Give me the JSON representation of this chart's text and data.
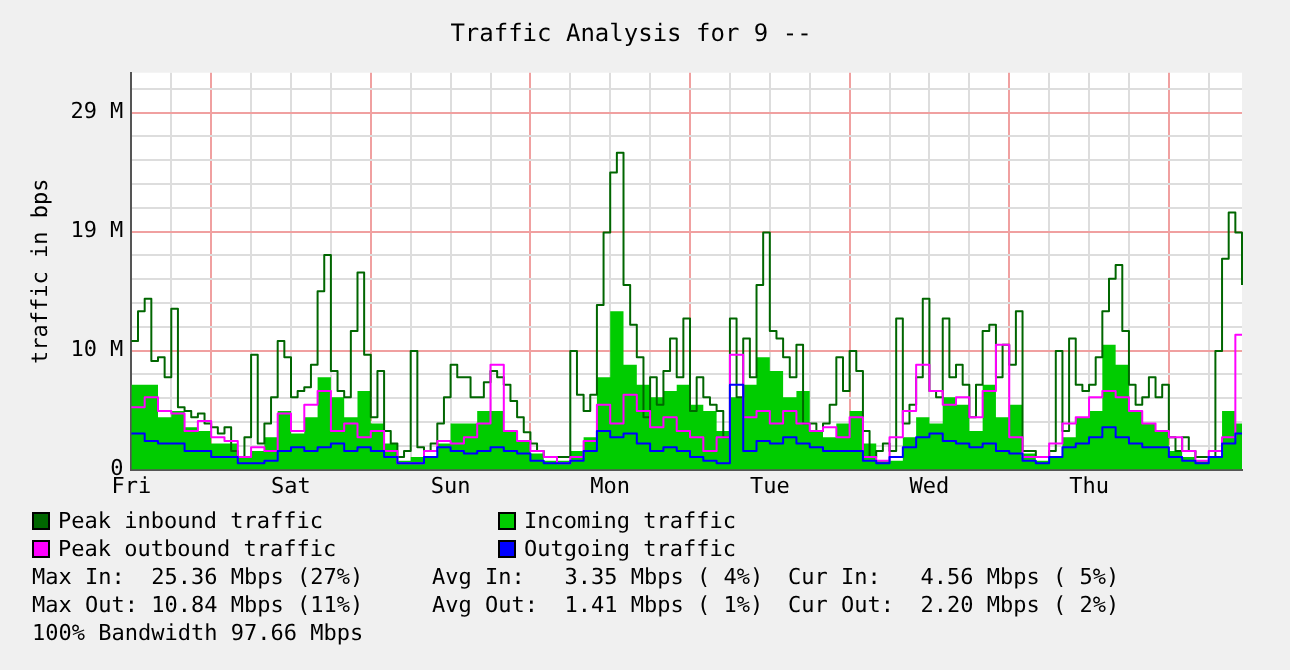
{
  "chart_data": {
    "type": "step",
    "title": "Traffic Analysis for 9 --",
    "ylabel": "traffic in bps",
    "categories": [
      "Fri",
      null,
      null,
      null,
      null,
      null,
      null,
      null,
      null,
      null,
      null,
      null,
      null,
      null,
      null,
      null,
      null,
      null,
      null,
      null,
      null,
      null,
      null,
      null,
      "Sat",
      null,
      null,
      null,
      null,
      null,
      null,
      null,
      null,
      null,
      null,
      null,
      null,
      null,
      null,
      null,
      null,
      null,
      null,
      null,
      null,
      null,
      null,
      null,
      "Sun",
      null,
      null,
      null,
      null,
      null,
      null,
      null,
      null,
      null,
      null,
      null,
      null,
      null,
      null,
      null,
      null,
      null,
      null,
      null,
      null,
      null,
      null,
      null,
      "Mon",
      null,
      null,
      null,
      null,
      null,
      null,
      null,
      null,
      null,
      null,
      null,
      null,
      null,
      null,
      null,
      null,
      null,
      null,
      null,
      null,
      null,
      null,
      null,
      "Tue",
      null,
      null,
      null,
      null,
      null,
      null,
      null,
      null,
      null,
      null,
      null,
      null,
      null,
      null,
      null,
      null,
      null,
      null,
      null,
      null,
      null,
      null,
      null,
      "Wed",
      null,
      null,
      null,
      null,
      null,
      null,
      null,
      null,
      null,
      null,
      null,
      null,
      null,
      null,
      null,
      null,
      null,
      null,
      null,
      null,
      null,
      null,
      null,
      "Thu",
      null,
      null,
      null,
      null,
      null,
      null,
      null,
      null,
      null,
      null,
      null,
      null,
      null,
      null,
      null,
      null,
      null,
      null,
      null,
      null,
      null,
      null,
      null
    ],
    "ylim": [
      0,
      31.8
    ],
    "yticks": [
      0,
      {
        "value": 1.91,
        "label": null
      },
      {
        "value": 3.81,
        "label": null
      },
      {
        "value": 5.72,
        "label": null
      },
      {
        "value": 7.63,
        "label": null
      },
      {
        "value": 9.54,
        "label": "10 M"
      },
      {
        "value": 11.44,
        "label": null
      },
      {
        "value": 13.35,
        "label": null
      },
      {
        "value": 15.26,
        "label": null
      },
      {
        "value": 17.17,
        "label": null
      },
      {
        "value": 19.07,
        "label": "19 M"
      },
      {
        "value": 20.98,
        "label": null
      },
      {
        "value": 22.89,
        "label": null
      },
      {
        "value": 24.8,
        "label": null
      },
      {
        "value": 26.7,
        "label": null
      },
      {
        "value": 28.61,
        "label": "29 M"
      },
      {
        "value": 30.52,
        "label": null
      }
    ],
    "grid": true,
    "legend": "bottom",
    "series": [
      {
        "name": "Peak inbound traffic",
        "color": "#006600",
        "values": [
          10.3,
          12.7,
          13.7,
          8.7,
          9.0,
          7.4,
          12.9,
          5.0,
          4.7,
          4.2,
          4.5,
          3.7,
          3.4,
          2.9,
          3.4,
          1.5,
          1.0,
          2.6,
          9.2,
          2.1,
          3.7,
          5.8,
          10.3,
          9.0,
          5.8,
          6.3,
          6.6,
          8.4,
          14.3,
          17.2,
          7.9,
          6.3,
          5.8,
          11.1,
          15.8,
          9.2,
          4.2,
          7.9,
          3.1,
          2.1,
          1.0,
          1.5,
          9.5,
          1.8,
          1.5,
          2.1,
          3.7,
          5.8,
          8.4,
          7.4,
          7.4,
          5.8,
          5.8,
          7.0,
          7.9,
          7.4,
          6.8,
          5.5,
          4.2,
          3.0,
          2.1,
          1.5,
          1.0,
          1.0,
          1.0,
          1.0,
          9.5,
          6.0,
          4.7,
          6.0,
          13.2,
          19.0,
          23.8,
          25.4,
          14.8,
          11.6,
          9.0,
          4.2,
          7.4,
          5.2,
          7.9,
          10.5,
          7.4,
          12.1,
          4.7,
          7.4,
          5.8,
          5.2,
          4.7,
          2.6,
          12.1,
          5.8,
          10.5,
          7.4,
          14.8,
          19.0,
          11.1,
          10.5,
          9.0,
          7.4,
          10.0,
          3.7,
          3.7,
          3.1,
          3.7,
          5.2,
          9.0,
          6.3,
          9.5,
          7.9,
          3.1,
          1.0,
          1.5,
          2.1,
          1.5,
          12.1,
          3.7,
          5.2,
          7.4,
          13.7,
          6.3,
          5.8,
          12.1,
          7.4,
          8.4,
          6.8,
          4.2,
          6.8,
          11.1,
          11.6,
          7.4,
          10.0,
          8.4,
          12.7,
          1.5,
          1.5,
          1.0,
          1.0,
          1.5,
          9.5,
          3.1,
          10.5,
          6.8,
          6.3,
          6.8,
          9.0,
          12.7,
          15.3,
          16.4,
          11.1,
          6.8,
          5.2,
          5.8,
          7.4,
          5.8,
          6.8,
          2.6,
          1.5,
          2.6,
          1.5,
          1.0,
          1.0,
          1.0,
          9.5,
          16.9,
          20.6,
          19.0,
          14.8
        ]
      },
      {
        "name": "Incoming traffic",
        "color": "#00cc00",
        "type": "area",
        "values": [
          6.8,
          6.8,
          6.8,
          6.8,
          4.2,
          4.2,
          4.7,
          4.7,
          3.4,
          3.4,
          3.1,
          3.1,
          2.1,
          2.1,
          2.1,
          2.1,
          1.0,
          1.0,
          1.5,
          1.5,
          2.6,
          2.6,
          4.7,
          4.7,
          2.9,
          2.9,
          4.2,
          4.2,
          7.4,
          7.4,
          5.8,
          5.8,
          4.2,
          4.2,
          6.3,
          6.3,
          3.7,
          3.7,
          2.1,
          2.1,
          0.7,
          0.7,
          1.0,
          1.0,
          1.0,
          1.0,
          2.1,
          2.1,
          3.7,
          3.7,
          3.7,
          3.7,
          4.7,
          4.7,
          4.7,
          4.7,
          3.1,
          3.1,
          2.3,
          2.3,
          1.3,
          1.3,
          0.7,
          0.7,
          0.7,
          0.7,
          1.5,
          1.5,
          2.6,
          2.6,
          7.4,
          7.4,
          12.7,
          12.7,
          8.4,
          8.4,
          6.8,
          6.8,
          5.8,
          5.8,
          6.3,
          6.3,
          6.8,
          6.8,
          5.2,
          5.2,
          4.7,
          4.7,
          3.1,
          3.1,
          5.8,
          5.8,
          6.8,
          6.8,
          9.0,
          9.0,
          7.9,
          7.9,
          5.8,
          5.8,
          6.3,
          6.3,
          3.1,
          3.1,
          2.6,
          2.6,
          3.7,
          3.7,
          4.7,
          4.7,
          2.1,
          2.1,
          0.7,
          0.7,
          0.7,
          0.7,
          2.6,
          2.6,
          4.2,
          4.2,
          3.7,
          3.7,
          5.8,
          5.8,
          5.2,
          5.2,
          3.1,
          3.1,
          6.8,
          6.8,
          4.2,
          4.2,
          5.2,
          5.2,
          1.3,
          1.3,
          0.7,
          0.7,
          1.0,
          1.0,
          2.6,
          2.6,
          4.2,
          4.2,
          4.7,
          4.7,
          10.0,
          10.0,
          8.4,
          8.4,
          4.7,
          4.7,
          3.7,
          3.7,
          3.1,
          3.1,
          1.5,
          1.5,
          1.0,
          1.0,
          0.7,
          0.7,
          1.0,
          1.0,
          4.7,
          4.7,
          3.7,
          3.7
        ]
      },
      {
        "name": "Peak outbound traffic",
        "color": "#ff00ff",
        "values": [
          5.0,
          5.0,
          5.8,
          5.8,
          4.7,
          4.7,
          4.5,
          4.5,
          3.1,
          3.1,
          3.9,
          3.9,
          2.6,
          2.6,
          2.3,
          2.3,
          1.0,
          1.0,
          1.8,
          1.8,
          1.5,
          1.5,
          4.5,
          4.5,
          3.1,
          3.1,
          5.2,
          5.2,
          6.3,
          6.3,
          3.1,
          3.1,
          3.7,
          3.7,
          2.6,
          2.6,
          3.1,
          3.1,
          1.5,
          1.5,
          0.5,
          0.5,
          0.5,
          0.5,
          1.5,
          1.5,
          2.3,
          2.3,
          2.1,
          2.1,
          2.6,
          2.6,
          3.7,
          3.7,
          8.4,
          8.4,
          3.1,
          3.1,
          2.3,
          2.3,
          1.5,
          1.5,
          1.0,
          1.0,
          0.5,
          0.5,
          1.0,
          1.0,
          2.3,
          2.3,
          5.2,
          5.2,
          3.7,
          3.7,
          6.0,
          6.0,
          4.7,
          4.7,
          3.4,
          3.4,
          4.2,
          4.2,
          3.1,
          3.1,
          2.6,
          2.6,
          1.5,
          1.5,
          2.6,
          2.6,
          9.2,
          9.2,
          4.2,
          4.2,
          4.7,
          4.7,
          3.7,
          3.7,
          4.7,
          4.7,
          3.7,
          3.7,
          3.1,
          3.1,
          3.4,
          3.4,
          2.6,
          2.6,
          4.2,
          4.2,
          1.0,
          1.0,
          0.7,
          0.7,
          2.6,
          2.6,
          4.7,
          4.7,
          8.4,
          8.4,
          6.3,
          6.3,
          5.2,
          5.2,
          5.8,
          5.8,
          4.2,
          4.2,
          6.3,
          6.3,
          10.0,
          10.0,
          2.6,
          2.6,
          1.0,
          1.0,
          1.0,
          1.0,
          2.1,
          2.1,
          3.7,
          3.7,
          4.2,
          4.2,
          5.8,
          5.8,
          6.3,
          6.3,
          5.8,
          5.8,
          4.7,
          4.7,
          3.7,
          3.7,
          3.1,
          3.1,
          2.6,
          2.6,
          1.5,
          1.5,
          0.7,
          0.7,
          1.5,
          1.5,
          2.6,
          2.6,
          10.8,
          10.8
        ]
      },
      {
        "name": "Outgoing traffic",
        "color": "#0000ff",
        "values": [
          2.9,
          2.9,
          2.3,
          2.3,
          2.1,
          2.1,
          2.1,
          2.1,
          1.5,
          1.5,
          1.5,
          1.5,
          1.0,
          1.0,
          1.0,
          1.0,
          0.5,
          0.5,
          0.5,
          0.5,
          0.7,
          0.7,
          1.5,
          1.5,
          1.8,
          1.8,
          1.5,
          1.5,
          1.8,
          1.8,
          2.1,
          2.1,
          1.5,
          1.5,
          1.8,
          1.8,
          1.5,
          1.5,
          1.0,
          1.0,
          0.5,
          0.5,
          0.5,
          0.5,
          1.0,
          1.0,
          1.8,
          1.8,
          1.5,
          1.5,
          1.3,
          1.3,
          1.5,
          1.5,
          1.8,
          1.8,
          1.5,
          1.5,
          1.3,
          1.3,
          0.7,
          0.7,
          0.5,
          0.5,
          0.5,
          0.5,
          0.7,
          0.7,
          1.5,
          1.5,
          3.1,
          3.1,
          2.6,
          2.6,
          2.9,
          2.9,
          2.1,
          2.1,
          1.5,
          1.5,
          1.8,
          1.8,
          1.5,
          1.5,
          1.0,
          1.0,
          0.7,
          0.7,
          0.5,
          0.5,
          6.8,
          6.8,
          1.5,
          1.5,
          2.3,
          2.3,
          2.1,
          2.1,
          2.6,
          2.6,
          2.1,
          2.1,
          1.8,
          1.8,
          1.5,
          1.5,
          1.5,
          1.5,
          1.5,
          1.5,
          0.7,
          0.7,
          0.5,
          0.5,
          1.0,
          1.0,
          1.8,
          1.8,
          2.6,
          2.6,
          2.9,
          2.9,
          2.3,
          2.3,
          2.1,
          2.1,
          1.8,
          1.8,
          2.1,
          2.1,
          1.5,
          1.5,
          1.3,
          1.3,
          0.7,
          0.7,
          0.5,
          0.5,
          1.0,
          1.0,
          1.8,
          1.8,
          2.1,
          2.1,
          2.6,
          2.6,
          3.4,
          3.4,
          2.6,
          2.6,
          2.1,
          2.1,
          1.8,
          1.8,
          1.8,
          1.8,
          1.0,
          1.0,
          0.7,
          0.7,
          0.5,
          0.5,
          1.0,
          1.0,
          2.1,
          2.1,
          2.9,
          2.9
        ]
      }
    ],
    "annotations": [
      "Max In:  25.36 Mbps (27%)",
      "Avg In:   3.35 Mbps ( 4%)",
      "Cur In:   4.56 Mbps ( 5%)",
      "Max Out: 10.84 Mbps (11%)",
      "Avg Out:  1.41 Mbps ( 1%)",
      "Cur Out:  2.20 Mbps ( 2%)",
      "100% Bandwidth 97.66 Mbps"
    ]
  }
}
